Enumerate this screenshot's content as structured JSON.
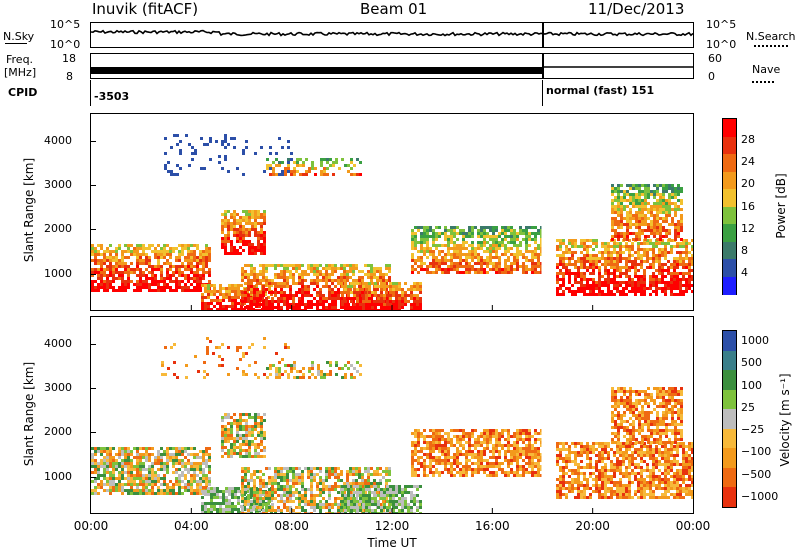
{
  "header": {
    "station": "Inuvik (fitACF)",
    "beam": "Beam 01",
    "date": "11/Dec/2013"
  },
  "strip": {
    "nsky_label": "N.Sky",
    "nsky_ticks": [
      "10^5",
      "10^0"
    ],
    "nsearch_label": "N.Search",
    "nsearch_ticks": [
      "10^5",
      "10^0"
    ],
    "freq_label": "Freq.",
    "freq_unit": "[MHz]",
    "freq_ticks": [
      "18",
      "8"
    ],
    "nave_label": "Nave",
    "nave_ticks": [
      "60",
      "0"
    ],
    "cpid_label": "CPID",
    "cpid_1": "-3503",
    "cpid_2": "normal (fast) 151"
  },
  "colors": {
    "power": [
      "#1e1eff",
      "#2c4fa8",
      "#3b7a6a",
      "#3aa042",
      "#7ec23c",
      "#f2c12e",
      "#f39a1c",
      "#ef6a12",
      "#e8310e",
      "#ff0000"
    ],
    "velocity": [
      "#e8310e",
      "#ef6a12",
      "#f39a1c",
      "#f7b93a",
      "#bdbdbd",
      "#7ec23c",
      "#3b8f3e",
      "#3a7f8a",
      "#2c4fa8"
    ]
  },
  "chart_data": [
    {
      "type": "heatmap",
      "name": "power",
      "ylabel": "Slant Range [km]",
      "xlabel": "",
      "ylim": [
        180,
        4600
      ],
      "yticks": [
        1000,
        2000,
        3000,
        4000
      ],
      "colorbar_label": "Power [dB]",
      "colorbar_ticks": [
        "4",
        "8",
        "12",
        "16",
        "20",
        "24",
        "28"
      ],
      "clim": [
        0,
        30
      ]
    },
    {
      "type": "heatmap",
      "name": "velocity",
      "ylabel": "Slant Range [km]",
      "xlabel": "Time UT",
      "xticks": [
        "00:00",
        "04:00",
        "08:00",
        "12:00",
        "16:00",
        "20:00",
        "00:00"
      ],
      "xlim": [
        0,
        24
      ],
      "ylim": [
        180,
        4600
      ],
      "yticks": [
        1000,
        2000,
        3000,
        4000
      ],
      "colorbar_label": "Velocity [m s⁻¹]",
      "colorbar_ticks": [
        "1000",
        "500",
        "100",
        "25",
        "−25",
        "−100",
        "−500",
        "−1000"
      ]
    }
  ]
}
